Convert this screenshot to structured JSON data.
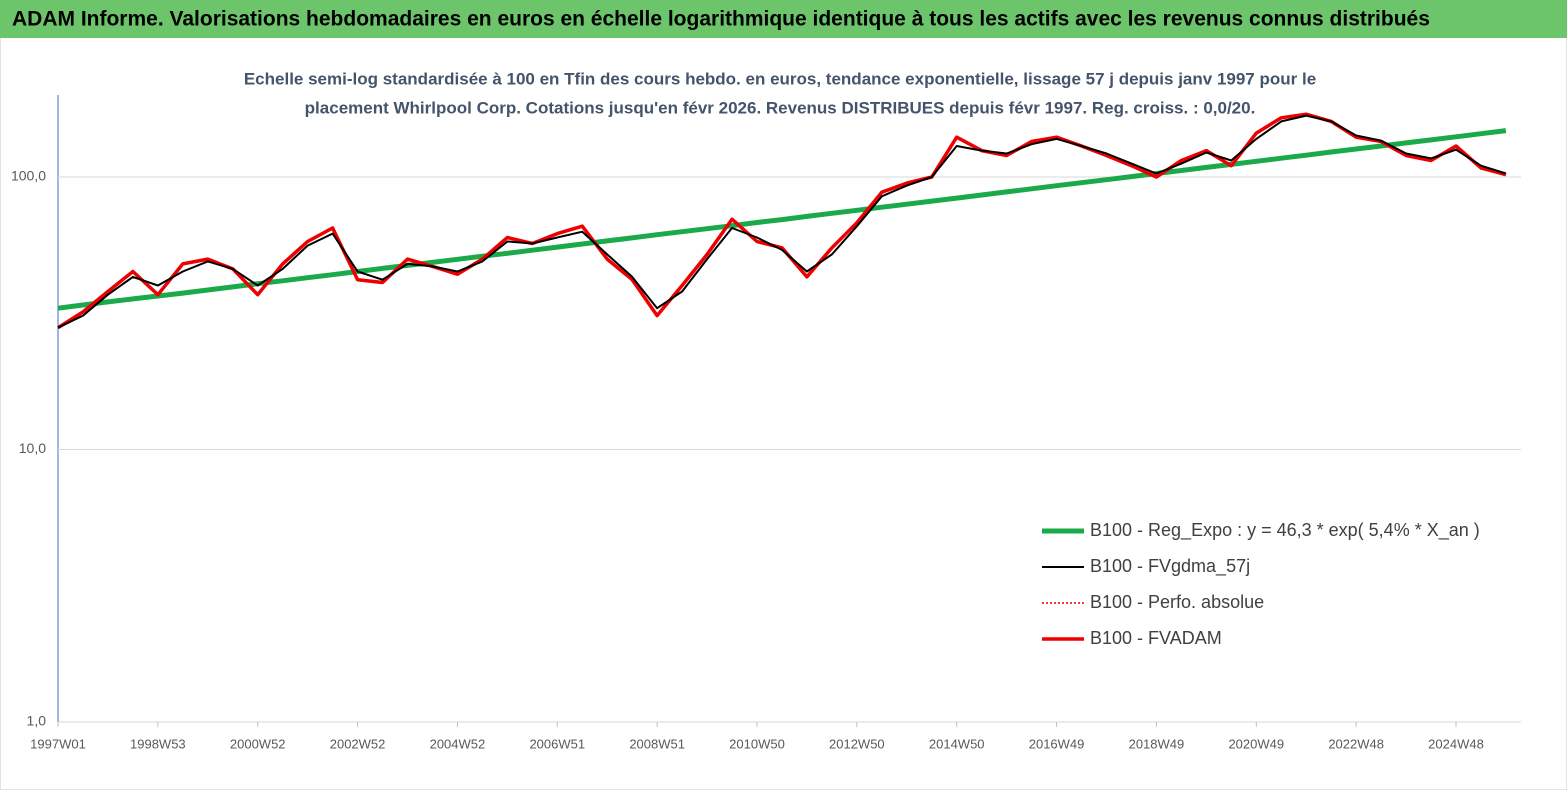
{
  "chart_data": {
    "type": "line",
    "title": "ADAM Informe. Valorisations hebdomadaires en euros en échelle logarithmique identique à tous les actifs avec les revenus connus distribués",
    "subtitle": [
      "Echelle semi-log standardisée à 100 en Tfin des cours hebdo. en euros, tendance exponentielle, lissage 57 j depuis janv 1997 pour le",
      "placement Whirlpool Corp. Cotations jusqu'en févr 2026. Revenus DISTRIBUES depuis févr 1997. Reg. croiss. : 0,0/20."
    ],
    "categories": [
      "1997W01",
      null,
      null,
      null,
      "1998W53",
      null,
      null,
      null,
      "2000W52",
      null,
      null,
      null,
      "2002W52",
      null,
      null,
      null,
      "2004W52",
      null,
      null,
      null,
      "2006W51",
      null,
      null,
      null,
      "2008W51",
      null,
      null,
      null,
      "2010W50",
      null,
      null,
      null,
      "2012W50",
      null,
      null,
      null,
      "2014W50",
      null,
      null,
      null,
      "2016W49",
      null,
      null,
      null,
      "2018W49",
      null,
      null,
      null,
      "2020W49",
      null,
      null,
      null,
      "2022W48",
      null,
      null,
      null,
      "2024W48",
      null,
      null
    ],
    "log_scale": true,
    "ylim": [
      1,
      200
    ],
    "yticks": [
      {
        "value": 1,
        "label": "1,0"
      },
      {
        "value": 10,
        "label": "10,0"
      },
      {
        "value": 100,
        "label": "100,0"
      }
    ],
    "grid": true,
    "legend": "right",
    "series": [
      {
        "name": "B100 - Reg_Expo : y = 46,3 *  exp( 5,4% *  X_an )",
        "color": "#1aaa4a",
        "width": 5,
        "dash": false,
        "values": [
          33.0,
          33.9,
          34.8,
          35.7,
          36.6,
          37.5,
          38.5,
          39.5,
          40.6,
          41.6,
          42.7,
          43.8,
          45.0,
          46.2,
          47.4,
          48.6,
          49.9,
          51.2,
          52.5,
          53.9,
          55.3,
          56.8,
          58.3,
          59.8,
          61.4,
          63.0,
          64.6,
          66.3,
          68.1,
          69.8,
          71.7,
          73.6,
          75.5,
          77.5,
          79.5,
          81.6,
          83.7,
          85.9,
          88.2,
          90.5,
          92.9,
          95.3,
          97.8,
          100.4,
          103.0,
          105.7,
          108.5,
          111.3,
          114.2,
          117.2,
          120.3,
          123.5,
          126.7,
          130.0,
          133.4,
          136.9,
          140.5,
          144.2,
          148.0
        ]
      },
      {
        "name": "B100 - FVgdma_57j",
        "color": "#000000",
        "width": 2,
        "dash": false,
        "values": [
          28,
          31,
          37,
          43,
          40,
          45,
          49,
          46,
          40,
          46,
          56,
          62,
          45,
          42,
          48,
          47,
          45,
          49,
          58,
          57,
          60,
          63,
          52,
          43,
          33,
          38,
          50,
          65,
          60,
          54,
          45,
          52,
          66,
          85,
          93,
          100,
          130,
          125,
          122,
          132,
          138,
          130,
          122,
          112,
          103,
          112,
          123,
          115,
          138,
          160,
          168,
          160,
          142,
          136,
          122,
          117,
          126,
          110,
          103
        ]
      },
      {
        "name": "B100 - Perfo. absolue",
        "color": "#e00000",
        "width": 1.5,
        "dash": true,
        "values": [
          28,
          32,
          38,
          45,
          37,
          48,
          50,
          46,
          37,
          48,
          58,
          65,
          42,
          41,
          50,
          47,
          44,
          50,
          60,
          57,
          62,
          66,
          50,
          42,
          31,
          40,
          52,
          70,
          58,
          55,
          43,
          55,
          68,
          88,
          95,
          100,
          140,
          125,
          120,
          135,
          140,
          130,
          120,
          110,
          100,
          115,
          125,
          110,
          145,
          165,
          170,
          160,
          140,
          135,
          120,
          115,
          130,
          108,
          102
        ]
      },
      {
        "name": "B100 - FVADAM",
        "color": "#ee0000",
        "width": 3.5,
        "dash": false,
        "values": [
          28,
          32,
          38,
          45,
          37,
          48,
          50,
          46,
          37,
          48,
          58,
          65,
          42,
          41,
          50,
          47,
          44,
          50,
          60,
          57,
          62,
          66,
          50,
          42,
          31,
          40,
          52,
          70,
          58,
          55,
          43,
          55,
          68,
          88,
          95,
          100,
          140,
          125,
          120,
          135,
          140,
          130,
          120,
          110,
          100,
          115,
          125,
          110,
          145,
          165,
          170,
          160,
          140,
          135,
          120,
          115,
          130,
          108,
          102
        ]
      }
    ]
  }
}
